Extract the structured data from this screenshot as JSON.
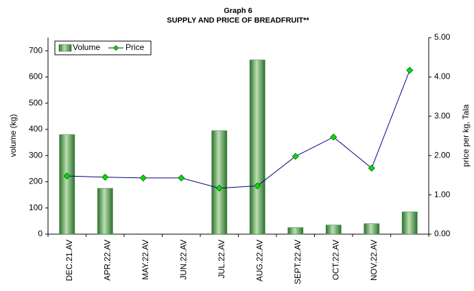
{
  "chart_data": {
    "type": "bar_line",
    "title": "Graph 6",
    "subtitle": "SUPPLY AND PRICE OF BREADFRUIT**",
    "y_label": "volume (kg)",
    "y2_label": "price per kg, Tala",
    "categories": [
      "DEC.21.AV",
      "APR.22.AV",
      "MAY.22.AV",
      "JUN.22.AV",
      "JUL.22.AV",
      "AUG.22.AV",
      "SEPT.22.AV",
      "OCT.22.AV",
      "NOV.22.AV",
      null
    ],
    "series": [
      {
        "name": "Volume",
        "type": "bar",
        "color": "#3a8a3a",
        "values": [
          380,
          175,
          null,
          null,
          395,
          665,
          25,
          35,
          40,
          85
        ]
      },
      {
        "name": "Price",
        "type": "line",
        "axis": "y2",
        "color": "#000080",
        "marker_color": "#00e000",
        "values": [
          1.48,
          1.45,
          1.43,
          1.43,
          1.17,
          1.23,
          1.98,
          2.47,
          1.68,
          4.17
        ]
      }
    ],
    "ylim": [
      0,
      750
    ],
    "yticks": [
      0,
      100,
      200,
      300,
      400,
      500,
      600,
      700
    ],
    "y2lim": [
      0,
      5
    ],
    "y2ticks": [
      {
        "value": 0,
        "label": "0.00"
      },
      {
        "value": 1,
        "label": "1.00"
      },
      {
        "value": 2,
        "label": "2.00"
      },
      {
        "value": 3,
        "label": "3.00"
      },
      {
        "value": 4,
        "label": "4.00"
      },
      {
        "value": 5,
        "label": "5.00"
      }
    ],
    "grid": false,
    "legend": "top-left"
  }
}
